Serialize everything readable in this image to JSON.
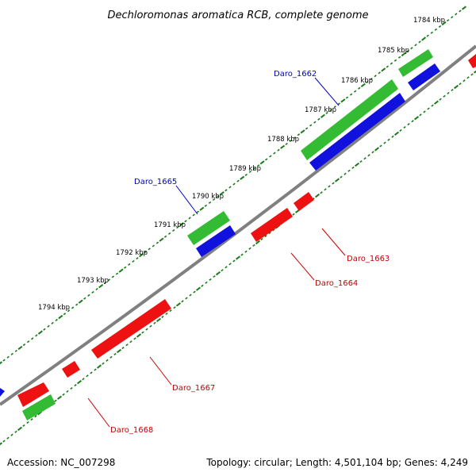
{
  "title": "Dechloromonas aromatica RCB, complete genome",
  "colors": {
    "backbone": "#808080",
    "tick": "#1a7a1a",
    "green": "#33bb33",
    "blue": "#1111dd",
    "red": "#ee1111",
    "label_blue": "#0000cc",
    "label_red": "#cc0000"
  },
  "kbp_labels": [
    "1784 kbp",
    "1785 kbp",
    "1786 kbp",
    "1787 kbp",
    "1788 kbp",
    "1789 kbp",
    "1790 kbp",
    "1791 kbp",
    "1792 kbp",
    "1793 kbp",
    "1794 kbp"
  ],
  "gene_labels": {
    "daro_1662": "Daro_1662",
    "daro_1665": "Daro_1665",
    "daro_1663": "Daro_1663",
    "daro_1664": "Daro_1664",
    "daro_1667": "Daro_1667",
    "daro_1668": "Daro_1668"
  },
  "footer": {
    "accession": "Accession: NC_007298",
    "summary": "Topology: circular; Length: 4,501,104 bp; Genes: 4,249"
  }
}
